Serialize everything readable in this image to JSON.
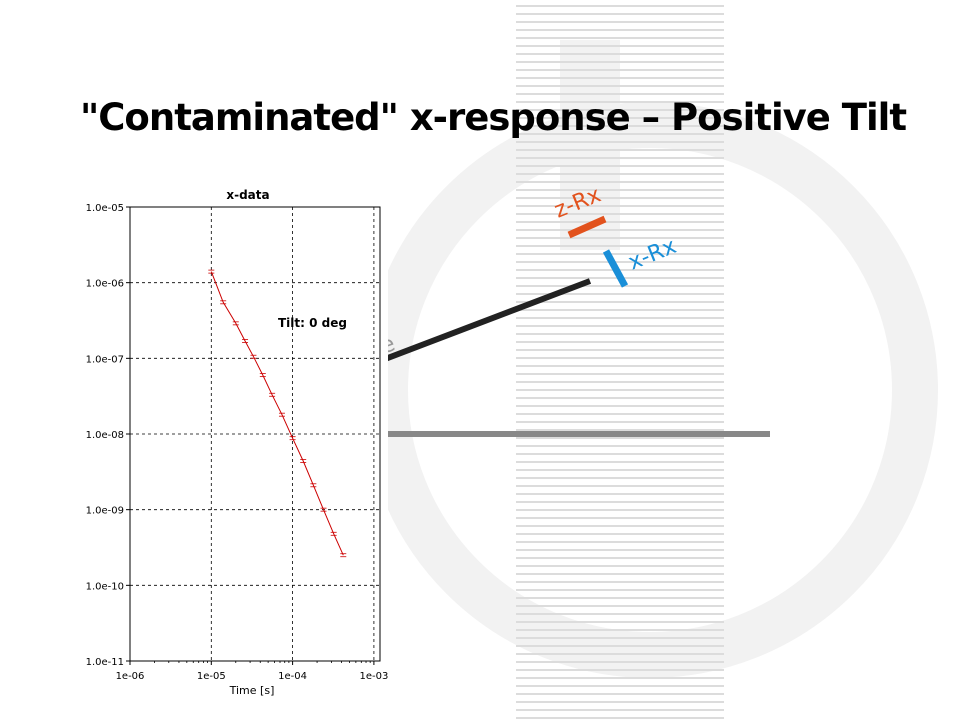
{
  "slide": {
    "title": "\"Contaminated\" x-response – Positive Tilt"
  },
  "diagram": {
    "labels": {
      "z_rx": "z-Rx",
      "x_rx": "x-Rx",
      "partial_text": "le"
    },
    "colors": {
      "z_rx": "#e2521d",
      "x_rx": "#1a8fd8",
      "rod": "#222222",
      "ground": "#888888",
      "stripes": "#dcdcdc",
      "watermark": "#f2f2f2"
    }
  },
  "chart_data": {
    "type": "line",
    "title": "x-data",
    "xlabel": "Time [s]",
    "ylabel": "",
    "xscale": "log",
    "yscale": "log",
    "xlim": [
      1e-06,
      0.0013
    ],
    "ylim": [
      1e-11,
      1e-05
    ],
    "grid": true,
    "x_tick_labels": [
      "1e-06",
      "1e-05",
      "1e-04",
      "1e-03"
    ],
    "x_tick_values": [
      1e-06,
      1e-05,
      0.0001,
      0.001
    ],
    "y_tick_labels": [
      "1.0e-05",
      "1.0e-06",
      "1.0e-07",
      "1.0e-08",
      "1.0e-09",
      "1.0e-10",
      "1.0e-11"
    ],
    "y_tick_values": [
      1e-05,
      1e-06,
      1e-07,
      1e-08,
      1e-09,
      1e-10,
      1e-11
    ],
    "annotation": "Tilt:  0 deg",
    "series": [
      {
        "color": "#cc0000",
        "x": [
          1e-05,
          1.4e-05,
          2e-05,
          2.6e-05,
          3.3e-05,
          4.3e-05,
          5.6e-05,
          7.4e-05,
          0.0001,
          0.000135,
          0.00018,
          0.00024,
          0.00032,
          0.00042
        ],
        "y": [
          1.4e-06,
          5.5e-07,
          2.9e-07,
          1.7e-07,
          1.05e-07,
          6e-08,
          3.3e-08,
          1.8e-08,
          8.8e-09,
          4.4e-09,
          2.1e-09,
          1e-09,
          4.8e-10,
          2.5e-10
        ]
      }
    ]
  }
}
